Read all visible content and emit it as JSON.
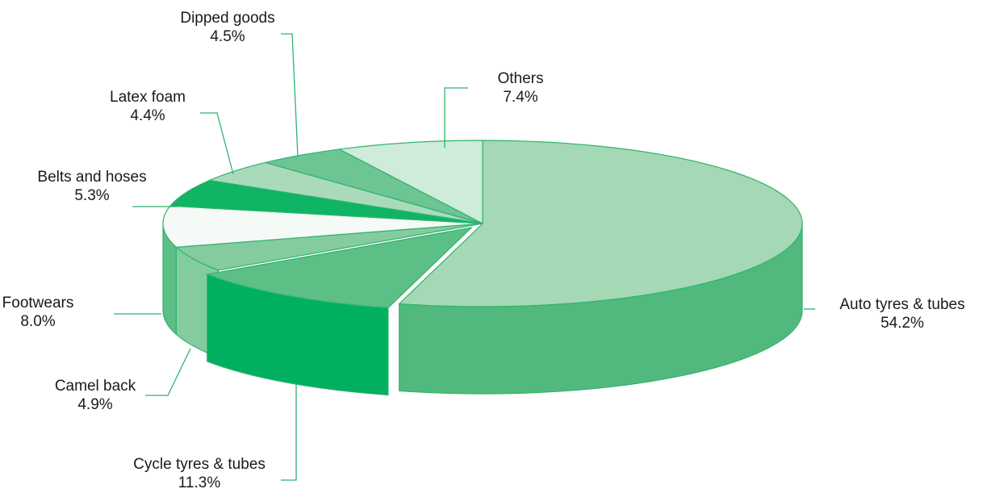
{
  "chart_data": {
    "type": "pie",
    "title": "",
    "categories": [
      "Auto tyres & tubes",
      "Cycle tyres & tubes",
      "Camel back",
      "Footwears",
      "Belts and hoses",
      "Latex foam",
      "Dipped goods",
      "Others"
    ],
    "values": [
      54.2,
      11.3,
      4.9,
      8.0,
      5.3,
      4.4,
      4.5,
      7.4
    ],
    "value_labels": [
      "54.2%",
      "11.3%",
      "4.9%",
      "8.0%",
      "5.3%",
      "4.4%",
      "4.5%",
      "7.4%"
    ],
    "colors": [
      "#a5d8b5",
      "#5cbf86",
      "#84cc9f",
      "#f5faf6",
      "#0fb464",
      "#a9dbbb",
      "#6cc592",
      "#cfebd9"
    ],
    "side_colors": [
      "#52b97e",
      "#00b060",
      "#84cc9f",
      "#5cbf86",
      "#0fb464",
      "#a9dbbb",
      "#6cc592",
      "#cfebd9"
    ],
    "edge_color": "#2fb46e",
    "legend": "none",
    "style": "3d-exploded-pie"
  }
}
